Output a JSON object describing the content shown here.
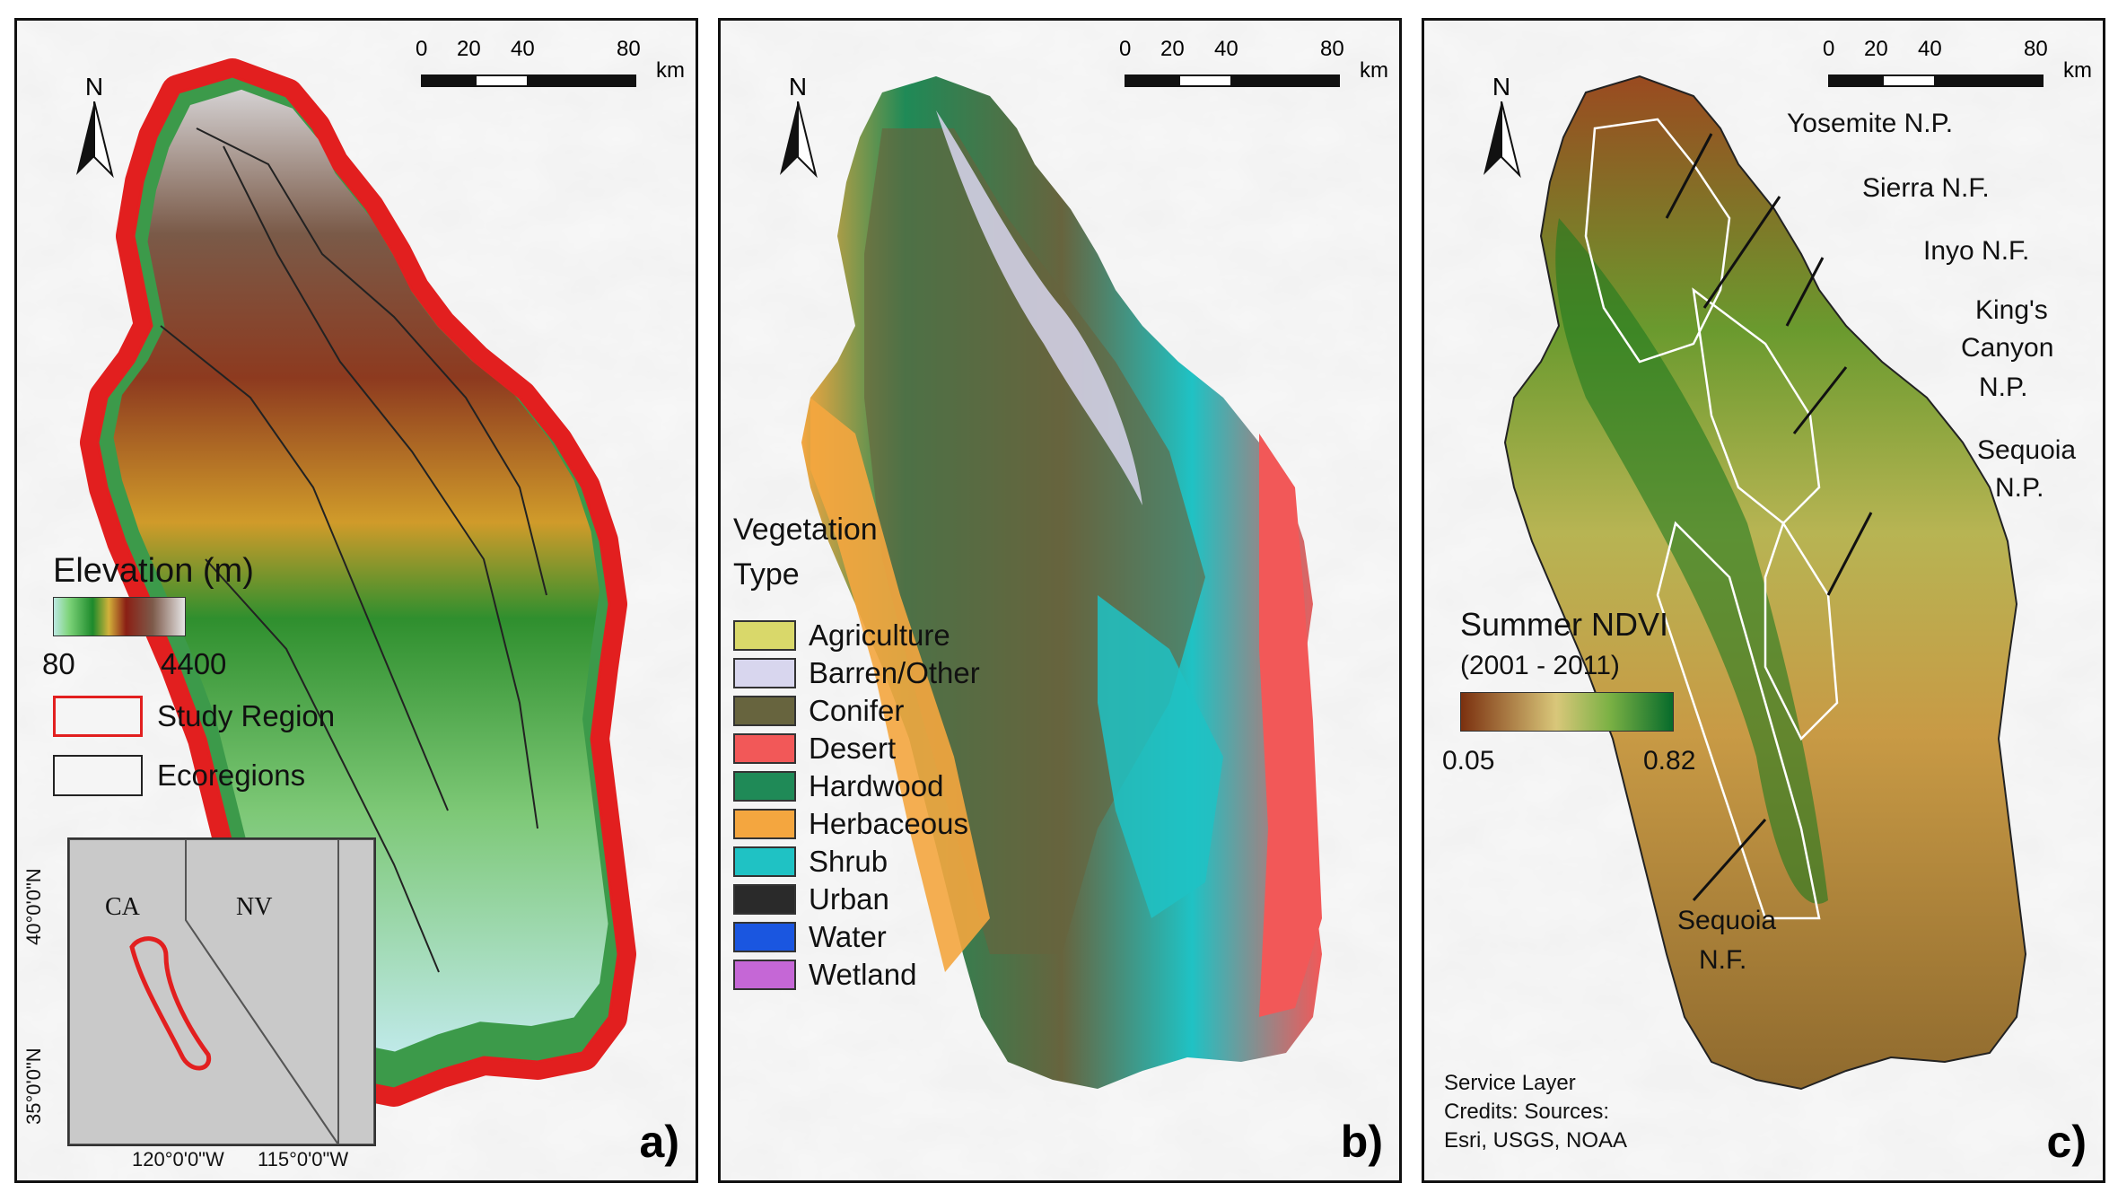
{
  "scale_bar": {
    "ticks": [
      "0",
      "20",
      "40",
      "80"
    ],
    "unit": "km"
  },
  "north_label": "N",
  "panel_a": {
    "letter": "a)",
    "legend_title": "Elevation (m)",
    "ramp_min": "80",
    "ramp_max": "4400",
    "study_region": "Study Region",
    "ecoregions": "Ecoregions",
    "inset": {
      "state_ca": "CA",
      "state_nv": "NV",
      "lat_40": "40°0'0\"N",
      "lat_35": "35°0'0\"N",
      "lon_120": "120°0'0\"W",
      "lon_115": "115°0'0\"W"
    }
  },
  "panel_b": {
    "letter": "b)",
    "legend_title_1": "Vegetation",
    "legend_title_2": "Type",
    "classes": [
      {
        "label": "Agriculture",
        "color": "#d9d86a"
      },
      {
        "label": "Barren/Other",
        "color": "#d8d6ee"
      },
      {
        "label": "Conifer",
        "color": "#67643e"
      },
      {
        "label": "Desert",
        "color": "#f25858"
      },
      {
        "label": "Hardwood",
        "color": "#1f8a57"
      },
      {
        "label": "Herbaceous",
        "color": "#f4a63f"
      },
      {
        "label": "Shrub",
        "color": "#1fc2c4"
      },
      {
        "label": "Urban",
        "color": "#2a2a2a"
      },
      {
        "label": "Water",
        "color": "#1a56e0"
      },
      {
        "label": "Wetland",
        "color": "#c567d6"
      }
    ]
  },
  "panel_c": {
    "letter": "c)",
    "legend_title": "Summer NDVI",
    "legend_subtitle": "(2001 - 2011)",
    "ramp_min": "0.05",
    "ramp_max": "0.82",
    "labels": {
      "yosemite": "Yosemite N.P.",
      "sierra": "Sierra N.F.",
      "inyo": "Inyo N.F.",
      "kings_1": "King's",
      "kings_2": "Canyon",
      "kings_3": "N.P.",
      "sequoia_np_1": "Sequoia",
      "sequoia_np_2": "N.P.",
      "sequoia_nf_1": "Sequoia",
      "sequoia_nf_2": "N.F."
    },
    "credits_1": "Service Layer",
    "credits_2": "Credits: Sources:",
    "credits_3": "Esri, USGS, NOAA"
  }
}
